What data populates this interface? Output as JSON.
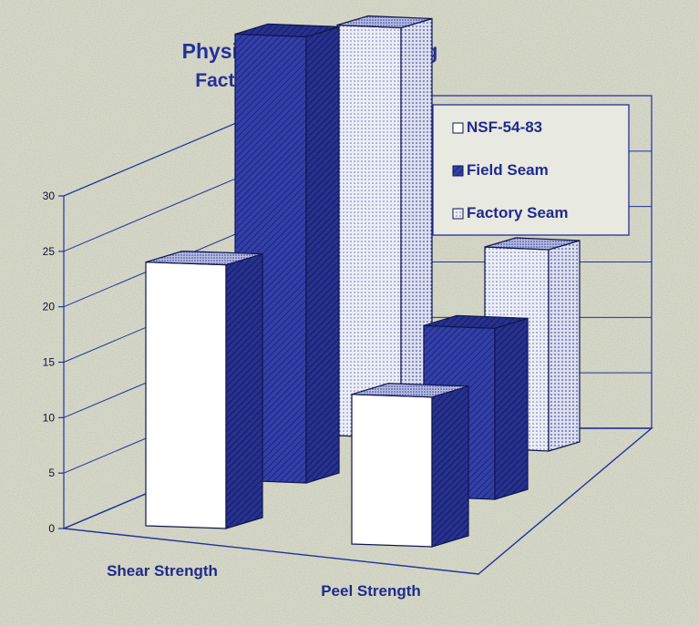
{
  "chart_data": {
    "type": "bar",
    "title": "Physical Property Testing",
    "subtitle": "Factory and Field Seams",
    "categories": [
      "Shear Strength",
      "Peel Strength"
    ],
    "series": [
      {
        "name": "NSF-54-83",
        "values": [
          18.5,
          10.5
        ]
      },
      {
        "name": "Field Seam",
        "values": [
          30,
          11.5
        ]
      },
      {
        "name": "Factory Seam",
        "values": [
          26.5,
          13
        ]
      }
    ],
    "yticks": [
      "0",
      "5",
      "10",
      "15",
      "20",
      "25",
      "30"
    ],
    "ylim": [
      0,
      30
    ],
    "grid": true,
    "legend_position": "top-right",
    "colors": {
      "background": "#d6d8c8",
      "nsf": "#ffffff",
      "field": "#2f3ca0",
      "factory": "#eceef6",
      "axis": "#24309a",
      "title": "#24309a"
    }
  }
}
